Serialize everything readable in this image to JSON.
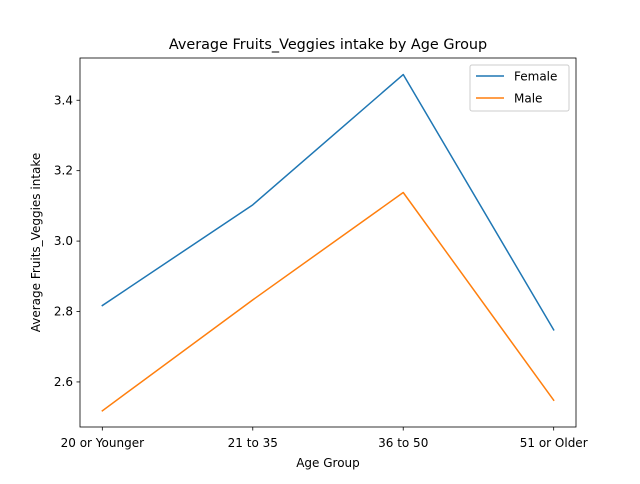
{
  "chart_data": {
    "type": "line",
    "title": "Average Fruits_Veggies intake by Age Group",
    "xlabel": "Age Group",
    "ylabel": "Average Fruits_Veggies intake",
    "categories": [
      "20 or Younger",
      "21 to 35",
      "36 to 50",
      "51 or Older"
    ],
    "series": [
      {
        "name": "Female",
        "color": "#1f77b4",
        "values": [
          2.817,
          3.103,
          3.473,
          2.748
        ]
      },
      {
        "name": "Male",
        "color": "#ff7f0e",
        "values": [
          2.518,
          2.833,
          3.138,
          2.548
        ]
      }
    ],
    "ylim": [
      2.472,
      3.52
    ],
    "yticks": [
      2.6,
      2.8,
      3.0,
      3.2,
      3.4
    ],
    "ytick_labels": [
      "2.6",
      "2.8",
      "3.0",
      "3.2",
      "3.4"
    ],
    "grid": false,
    "legend_position": "top-right"
  }
}
